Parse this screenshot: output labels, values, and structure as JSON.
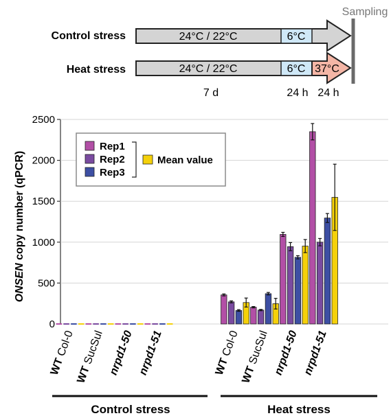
{
  "schematic": {
    "sampling_label": "Sampling",
    "rows": [
      {
        "label": "Control stress",
        "seg1": "24°C / 22°C",
        "seg2": "6°C",
        "seg3": ""
      },
      {
        "label": "Heat stress",
        "seg1": "24°C / 22°C",
        "seg2": "6°C",
        "seg3": "37°C"
      }
    ],
    "durations": [
      "7 d",
      "24 h",
      "24 h"
    ],
    "colors": {
      "phase1": "#d4d4d4",
      "phase2": "#cfe8f7",
      "phase3": "#f4b6a6",
      "arrow": "#d4d4d4"
    }
  },
  "chart_data": {
    "type": "bar",
    "ylabel_italic": "ONSEN",
    "ylabel_rest": " copy number (qPCR)",
    "ylim": [
      0,
      2500
    ],
    "yticks": [
      0,
      500,
      1000,
      1500,
      2000,
      2500
    ],
    "categories": [
      {
        "bold": "WT",
        "normal": " Col-0",
        "italic_bold": ""
      },
      {
        "bold": "WT",
        "normal": " SucSul",
        "italic_bold": ""
      },
      {
        "bold": "",
        "normal": "",
        "italic_bold": "nrpd1-50"
      },
      {
        "bold": "",
        "normal": "",
        "italic_bold": "nrpd1-51"
      },
      {
        "bold": "WT",
        "normal": " Col-0",
        "italic_bold": ""
      },
      {
        "bold": "WT",
        "normal": " SucSul",
        "italic_bold": ""
      },
      {
        "bold": "",
        "normal": "",
        "italic_bold": "nrpd1-50"
      },
      {
        "bold": "",
        "normal": "",
        "italic_bold": "nrpd1-51"
      }
    ],
    "series": [
      {
        "name": "Rep1",
        "color": "#b24fa6",
        "values": [
          0,
          0,
          0,
          0,
          355,
          205,
          1095,
          2350
        ],
        "errors": [
          0,
          0,
          0,
          0,
          12,
          8,
          25,
          100
        ]
      },
      {
        "name": "Rep2",
        "color": "#7a4ba0",
        "values": [
          0,
          0,
          0,
          0,
          270,
          170,
          945,
          1000
        ],
        "errors": [
          0,
          0,
          0,
          0,
          12,
          8,
          50,
          45
        ]
      },
      {
        "name": "Rep3",
        "color": "#3d4fa3",
        "values": [
          0,
          0,
          0,
          0,
          165,
          370,
          815,
          1295
        ],
        "errors": [
          0,
          0,
          0,
          0,
          10,
          15,
          20,
          55
        ]
      },
      {
        "name": "Mean value",
        "color": "#f5d10a",
        "values": [
          0,
          0,
          0,
          0,
          262,
          248,
          952,
          1548
        ],
        "errors": [
          0,
          0,
          0,
          0,
          55,
          65,
          80,
          405
        ]
      }
    ],
    "groups": [
      "Control stress",
      "Heat stress"
    ],
    "legend_position": "top-left"
  }
}
